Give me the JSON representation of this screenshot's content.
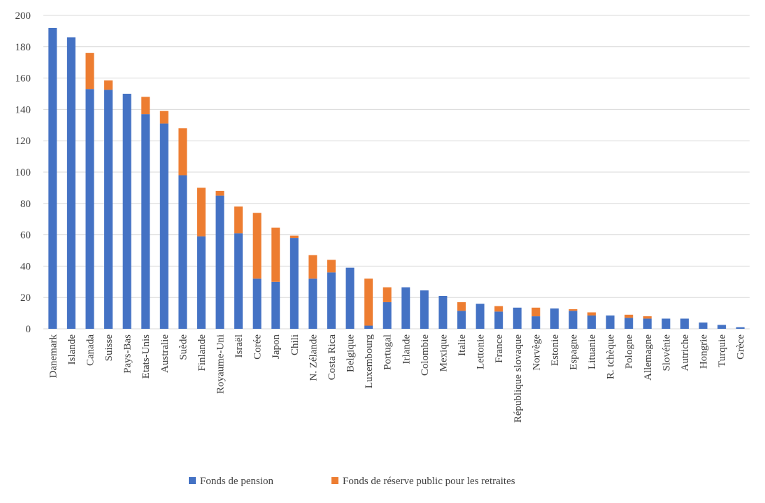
{
  "chart_data": {
    "type": "stacked-bar",
    "categories": [
      "Danemark",
      "Islande",
      "Canada",
      "Suisse",
      "Pays-Bas",
      "Etats-Unis",
      "Australie",
      "Suède",
      "Finlande",
      "Royaume-Uni",
      "Israël",
      "Corée",
      "Japon",
      "Chili",
      "N. Zélande",
      "Costa Rica",
      "Belgique",
      "Luxembourg",
      "Portugal",
      "Irlande",
      "Colombie",
      "Mexique",
      "Italie",
      "Lettonie",
      "France",
      "République slovaque",
      "Norvège",
      "Estonie",
      "Espagne",
      "Lituanie",
      "R. tchèque",
      "Pologne",
      "Allemagne",
      "Slovénie",
      "Autriche",
      "Hongrie",
      "Turquie",
      "Grèce"
    ],
    "series": [
      {
        "name": "Fonds de pension",
        "color": "#4472c4",
        "values": [
          192,
          186,
          153,
          152.5,
          150,
          137,
          131,
          98,
          59,
          85,
          61,
          32,
          30,
          58,
          32,
          36,
          39,
          2,
          17,
          26.5,
          24.5,
          21,
          11.5,
          16,
          11,
          13.5,
          8,
          13,
          11.5,
          8.5,
          8.5,
          7,
          6.5,
          6.5,
          6.5,
          4,
          2.5,
          1
        ]
      },
      {
        "name": "Fonds de réserve public pour les retraites",
        "color": "#ed7d31",
        "values": [
          0,
          0,
          23,
          6,
          0,
          11,
          8,
          30,
          31,
          3,
          17,
          42,
          34.5,
          1.5,
          15,
          8,
          0,
          30,
          9.5,
          0,
          0,
          0,
          5.5,
          0,
          3.5,
          0,
          5.5,
          0,
          1,
          2,
          0,
          2,
          1.5,
          0,
          0,
          0,
          0,
          0
        ]
      }
    ],
    "ylim": [
      0,
      200
    ],
    "yticks": [
      0,
      20,
      40,
      60,
      80,
      100,
      120,
      140,
      160,
      180,
      200
    ],
    "grid": true,
    "legend": "bottom"
  }
}
